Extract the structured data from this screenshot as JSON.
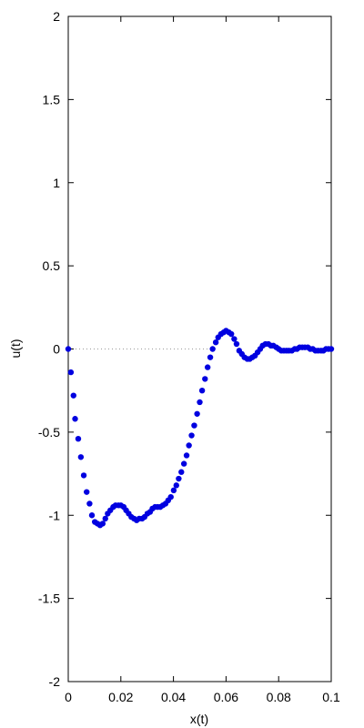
{
  "chart_data": {
    "type": "scatter",
    "title": "",
    "xlabel": "x(t)",
    "ylabel": "u(t)",
    "xlim": [
      0,
      0.1
    ],
    "ylim": [
      -2,
      2
    ],
    "x_ticks": [
      "0",
      "0.02",
      "0.04",
      "0.06",
      "0.08",
      "0.1"
    ],
    "x_tick_values": [
      0,
      0.02,
      0.04,
      0.06,
      0.08,
      0.1
    ],
    "y_ticks": [
      "-2",
      "-1.5",
      "-1",
      "-0.5",
      "0",
      "0.5",
      "1",
      "1.5",
      "2"
    ],
    "y_tick_values": [
      -2,
      -1.5,
      -1,
      -0.5,
      0,
      0.5,
      1,
      1.5,
      2
    ],
    "reference_line": {
      "y": 0,
      "style": "dotted",
      "x_range": [
        0,
        0.055
      ]
    },
    "grid": false,
    "marker_color": "#0000e0",
    "series": [
      {
        "points": [
          [
            0.0,
            0.0
          ],
          [
            0.001,
            -0.14
          ],
          [
            0.002,
            -0.28
          ],
          [
            0.0026,
            -0.42
          ],
          [
            0.0038,
            -0.54
          ],
          [
            0.0048,
            -0.65
          ],
          [
            0.0059,
            -0.76
          ],
          [
            0.007,
            -0.86
          ],
          [
            0.0081,
            -0.93
          ],
          [
            0.009,
            -1.0
          ],
          [
            0.0101,
            -1.04
          ],
          [
            0.0111,
            -1.05
          ],
          [
            0.0121,
            -1.06
          ],
          [
            0.0131,
            -1.05
          ],
          [
            0.0141,
            -1.02
          ],
          [
            0.015,
            -0.99
          ],
          [
            0.016,
            -0.97
          ],
          [
            0.0171,
            -0.95
          ],
          [
            0.018,
            -0.94
          ],
          [
            0.0191,
            -0.94
          ],
          [
            0.02,
            -0.94
          ],
          [
            0.0211,
            -0.95
          ],
          [
            0.022,
            -0.97
          ],
          [
            0.023,
            -0.99
          ],
          [
            0.024,
            -1.01
          ],
          [
            0.025,
            -1.02
          ],
          [
            0.026,
            -1.03
          ],
          [
            0.027,
            -1.02
          ],
          [
            0.0281,
            -1.02
          ],
          [
            0.029,
            -1.01
          ],
          [
            0.0301,
            -0.99
          ],
          [
            0.0311,
            -0.98
          ],
          [
            0.032,
            -0.96
          ],
          [
            0.033,
            -0.95
          ],
          [
            0.034,
            -0.95
          ],
          [
            0.035,
            -0.95
          ],
          [
            0.036,
            -0.94
          ],
          [
            0.037,
            -0.93
          ],
          [
            0.038,
            -0.91
          ],
          [
            0.039,
            -0.89
          ],
          [
            0.0401,
            -0.85
          ],
          [
            0.0411,
            -0.82
          ],
          [
            0.042,
            -0.78
          ],
          [
            0.043,
            -0.74
          ],
          [
            0.044,
            -0.69
          ],
          [
            0.045,
            -0.64
          ],
          [
            0.0459,
            -0.58
          ],
          [
            0.0469,
            -0.52
          ],
          [
            0.0479,
            -0.46
          ],
          [
            0.049,
            -0.39
          ],
          [
            0.05,
            -0.32
          ],
          [
            0.0509,
            -0.25
          ],
          [
            0.052,
            -0.18
          ],
          [
            0.053,
            -0.11
          ],
          [
            0.054,
            -0.05
          ],
          [
            0.0549,
            0.0
          ],
          [
            0.0561,
            0.04
          ],
          [
            0.057,
            0.07
          ],
          [
            0.0581,
            0.09
          ],
          [
            0.0591,
            0.1
          ],
          [
            0.06,
            0.11
          ],
          [
            0.0611,
            0.1
          ],
          [
            0.062,
            0.09
          ],
          [
            0.0631,
            0.06
          ],
          [
            0.064,
            0.03
          ],
          [
            0.065,
            -0.01
          ],
          [
            0.066,
            -0.03
          ],
          [
            0.067,
            -0.05
          ],
          [
            0.0681,
            -0.06
          ],
          [
            0.069,
            -0.06
          ],
          [
            0.07,
            -0.05
          ],
          [
            0.071,
            -0.04
          ],
          [
            0.072,
            -0.02
          ],
          [
            0.073,
            0.0
          ],
          [
            0.0739,
            0.02
          ],
          [
            0.075,
            0.03
          ],
          [
            0.0761,
            0.03
          ],
          [
            0.0771,
            0.02
          ],
          [
            0.078,
            0.02
          ],
          [
            0.0791,
            0.01
          ],
          [
            0.08,
            0.0
          ],
          [
            0.081,
            -0.01
          ],
          [
            0.082,
            -0.01
          ],
          [
            0.083,
            -0.01
          ],
          [
            0.0839,
            -0.01
          ],
          [
            0.085,
            -0.01
          ],
          [
            0.0861,
            0.0
          ],
          [
            0.087,
            0.0
          ],
          [
            0.088,
            0.01
          ],
          [
            0.089,
            0.01
          ],
          [
            0.09,
            0.01
          ],
          [
            0.0911,
            0.01
          ],
          [
            0.092,
            0.0
          ],
          [
            0.093,
            0.0
          ],
          [
            0.094,
            -0.01
          ],
          [
            0.095,
            -0.01
          ],
          [
            0.0961,
            -0.01
          ],
          [
            0.097,
            -0.01
          ],
          [
            0.098,
            0.0
          ],
          [
            0.099,
            0.0
          ],
          [
            0.1,
            0.0
          ]
        ]
      }
    ]
  }
}
